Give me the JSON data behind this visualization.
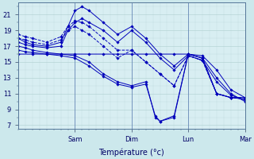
{
  "background_color": "#cce8ec",
  "plot_bg_color": "#d8eef2",
  "grid_color": "#aacccc",
  "line_color": "#0000bb",
  "xlabel": "Température (°c)",
  "yticks": [
    7,
    9,
    11,
    13,
    15,
    17,
    19,
    21
  ],
  "xtick_labels": [
    "Sam",
    "Dim",
    "Lun",
    "Mar"
  ],
  "ylim": [
    6.5,
    22.5
  ],
  "xlim": [
    0,
    96
  ],
  "xtick_positions": [
    24,
    48,
    72,
    96
  ],
  "series": [
    {
      "x": [
        0,
        3,
        6,
        12,
        18,
        21,
        24,
        27,
        30,
        36,
        42,
        48,
        54,
        60,
        66,
        72,
        78,
        84,
        90,
        96
      ],
      "y": [
        18.0,
        17.5,
        17.2,
        17.0,
        17.5,
        19.5,
        21.5,
        22.0,
        21.5,
        20.0,
        18.5,
        19.5,
        18.0,
        16.0,
        14.5,
        16.0,
        15.5,
        13.0,
        11.0,
        10.0
      ],
      "dashed": false
    },
    {
      "x": [
        0,
        3,
        6,
        12,
        18,
        21,
        24,
        27,
        30,
        36,
        42,
        48,
        54,
        60,
        66,
        72,
        78,
        84,
        90,
        96
      ],
      "y": [
        17.5,
        17.2,
        17.0,
        16.8,
        17.0,
        19.0,
        20.0,
        20.5,
        20.0,
        19.0,
        17.5,
        19.0,
        17.5,
        15.5,
        14.0,
        15.8,
        15.2,
        12.5,
        10.8,
        10.2
      ],
      "dashed": false
    },
    {
      "x": [
        0,
        3,
        6,
        12,
        18,
        24,
        30,
        36,
        42,
        48,
        54,
        58,
        60,
        66,
        72,
        78,
        84,
        90,
        96
      ],
      "y": [
        17.0,
        16.8,
        16.5,
        16.2,
        16.0,
        15.8,
        15.0,
        13.5,
        12.5,
        12.0,
        12.5,
        8.0,
        7.5,
        8.2,
        16.0,
        15.5,
        11.0,
        10.5,
        10.5
      ],
      "dashed": false
    },
    {
      "x": [
        0,
        3,
        6,
        12,
        18,
        24,
        30,
        36,
        42,
        48,
        54,
        58,
        60,
        66,
        72,
        78,
        84,
        90,
        96
      ],
      "y": [
        16.5,
        16.3,
        16.2,
        16.0,
        15.8,
        15.5,
        14.5,
        13.2,
        12.2,
        11.8,
        12.2,
        8.2,
        7.5,
        8.0,
        16.0,
        15.5,
        11.0,
        10.5,
        10.3
      ],
      "dashed": false
    },
    {
      "x": [
        0,
        6,
        12,
        18,
        24,
        30,
        36,
        42,
        48,
        54,
        60,
        66,
        72,
        78,
        84,
        90,
        96
      ],
      "y": [
        16.0,
        16.0,
        16.0,
        16.0,
        16.0,
        16.0,
        16.0,
        16.0,
        16.0,
        16.0,
        16.0,
        16.0,
        16.0,
        15.8,
        14.0,
        11.5,
        10.5
      ],
      "dashed": false
    },
    {
      "x": [
        0,
        3,
        6,
        12,
        18,
        21,
        24,
        27,
        30,
        36,
        42,
        48,
        54,
        60,
        66,
        72,
        78,
        84,
        90,
        96
      ],
      "y": [
        18.0,
        17.8,
        17.5,
        17.2,
        17.8,
        19.0,
        19.5,
        19.0,
        18.5,
        17.0,
        15.5,
        16.5,
        15.0,
        13.5,
        12.0,
        15.8,
        15.2,
        11.0,
        10.5,
        10.3
      ],
      "dashed": true
    },
    {
      "x": [
        0,
        3,
        6,
        12,
        18,
        21,
        24,
        27,
        30,
        36,
        42,
        48,
        54,
        60,
        66,
        72,
        78,
        84,
        90,
        96
      ],
      "y": [
        18.5,
        18.2,
        18.0,
        17.5,
        18.2,
        19.5,
        20.2,
        20.0,
        19.5,
        18.0,
        16.5,
        16.5,
        15.0,
        13.5,
        12.0,
        15.8,
        15.2,
        11.0,
        10.5,
        10.5
      ],
      "dashed": true
    }
  ]
}
